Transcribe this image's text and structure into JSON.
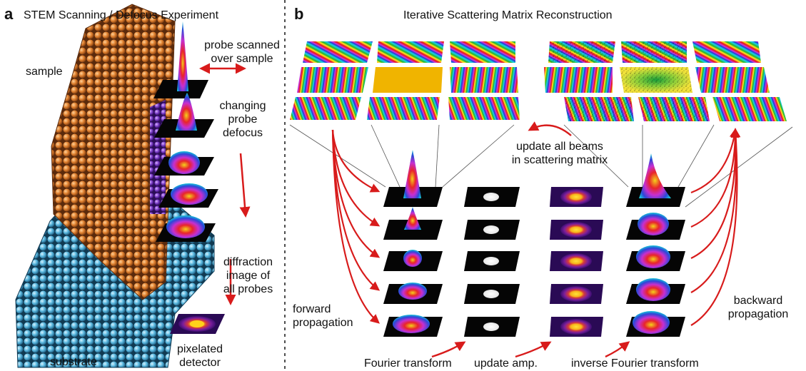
{
  "panel_a": {
    "letter": "a",
    "title": "STEM Scanning / Defocus Experiment",
    "labels": {
      "sample": "sample",
      "substrate": "substrate",
      "probe_scanned": [
        "probe scanned",
        "over sample"
      ],
      "changing_defocus": [
        "changing",
        "probe",
        "defocus"
      ],
      "diffraction": [
        "diffraction",
        "image of",
        "all probes"
      ],
      "detector": [
        "pixelated",
        "detector"
      ]
    }
  },
  "panel_b": {
    "letter": "b",
    "title": "Iterative Scattering Matrix Reconstruction",
    "labels": {
      "update_beams": [
        "update all beams",
        "in scattering matrix"
      ],
      "forward": [
        "forward",
        "propagation"
      ],
      "backward": [
        "backward",
        "propagation"
      ],
      "fourier": "Fourier transform",
      "update_amp": "update amp.",
      "inverse_fourier": "inverse Fourier transform"
    }
  },
  "colors": {
    "sample_orange": "#d9782a",
    "substrate_blue": "#5fb8dc",
    "arrow_red": "#d81b1b",
    "tile_black": "#050505",
    "tile_gold": "#f0b400",
    "dash": "#222222"
  }
}
